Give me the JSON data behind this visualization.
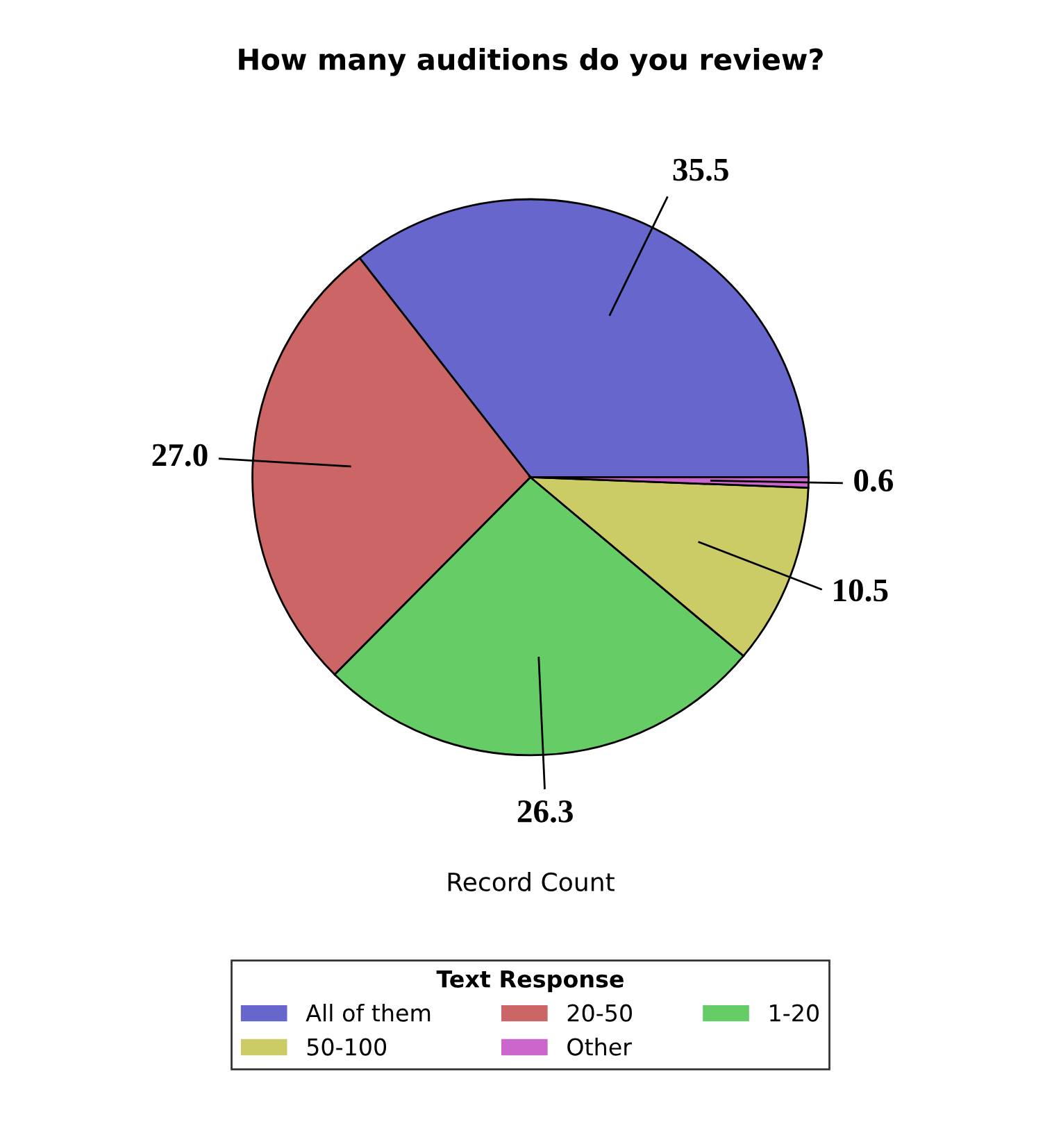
{
  "chart_data": {
    "type": "pie",
    "title": "How many auditions do you review?",
    "xlabel": "Record Count",
    "legend_title": "Text Response",
    "legend": "bottom",
    "categories": [
      "All of them",
      "20-50",
      "1-20",
      "50-100",
      "Other"
    ],
    "values": [
      35.5,
      27.0,
      26.3,
      10.5,
      0.6
    ],
    "value_labels": [
      "35.5",
      "27.0",
      "26.3",
      "10.5",
      "0.6"
    ],
    "colors": [
      "#6666cc",
      "#cc6666",
      "#66cc66",
      "#cccc66",
      "#cc66cc"
    ]
  }
}
